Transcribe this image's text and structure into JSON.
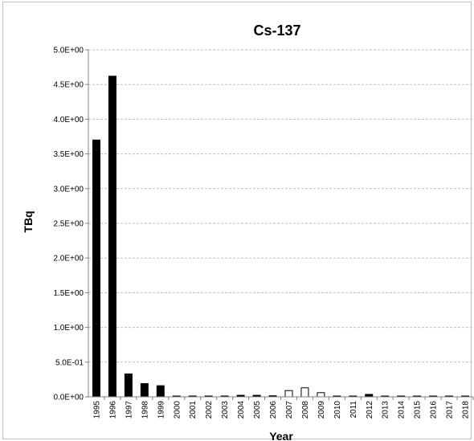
{
  "chart_data": {
    "type": "bar",
    "title": "Cs-137",
    "xlabel": "Year",
    "ylabel": "TBq",
    "ylim": [
      0,
      5.0
    ],
    "y_ticks": [
      "0.0E+00",
      "5.0E-01",
      "1.0E+00",
      "1.5E+00",
      "2.0E+00",
      "2.5E+00",
      "3.0E+00",
      "3.5E+00",
      "4.0E+00",
      "4.5E+00",
      "5.0E+00"
    ],
    "grid": true,
    "legend": "none",
    "categories": [
      "1995",
      "1996",
      "1997",
      "1998",
      "1999",
      "2000",
      "2001",
      "2002",
      "2003",
      "2004",
      "2005",
      "2006",
      "2007",
      "2008",
      "2009",
      "2010",
      "2011",
      "2012",
      "2013",
      "2014",
      "2015",
      "2016",
      "2017",
      "2018"
    ],
    "values": [
      3.7,
      4.62,
      0.33,
      0.19,
      0.16,
      0.01,
      0.012,
      0.012,
      0.012,
      0.022,
      0.022,
      0.015,
      0.09,
      0.13,
      0.06,
      0.005,
      0.006,
      0.035,
      0.004,
      0.004,
      0.004,
      0.004,
      0.004,
      0.004
    ],
    "bar_fill": [
      "#000000",
      "#000000",
      "#000000",
      "#000000",
      "#000000",
      "#000000",
      "#000000",
      "#000000",
      "#000000",
      "#000000",
      "#000000",
      "#000000",
      "#ffffff",
      "#ffffff",
      "#ffffff",
      "#ffffff",
      "#ffffff",
      "#000000",
      "#ffffff",
      "#ffffff",
      "#ffffff",
      "#ffffff",
      "#ffffff",
      "#ffffff"
    ],
    "colors": {
      "bar_stroke": "#000000",
      "grid": "#bfbfbf",
      "axis": "#808080"
    }
  }
}
